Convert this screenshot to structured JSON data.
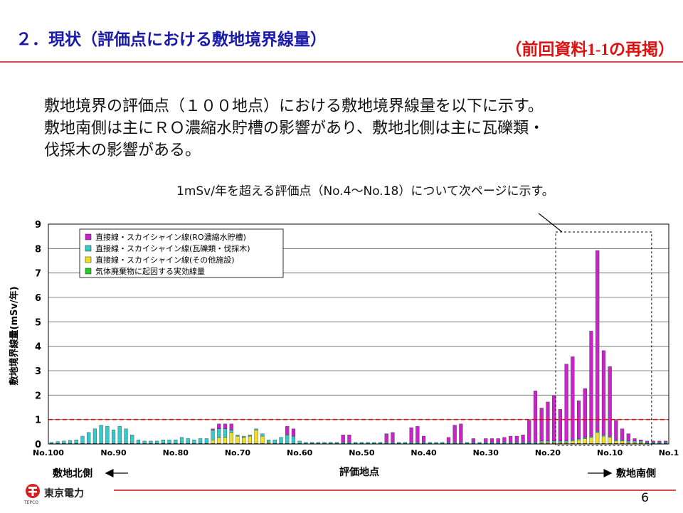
{
  "header": {
    "title": "２．現状（評価点における敷地境界線量）",
    "repost": "（前回資料1-1の再掲）"
  },
  "body": {
    "lines": [
      "敷地境界の評価点（１００地点）における敷地境界線量を以下に示す。",
      "敷地南側は主にＲＯ濃縮水貯槽の影響があり、敷地北側は主に瓦礫類・",
      "伐採木の影響がある。"
    ],
    "note": "1mSv/年を超える評価点（No.4～No.18）について次ページに示す。"
  },
  "footer": {
    "company": "東京電力",
    "company_sub": "TEPCO",
    "page": "6"
  },
  "chart_data": {
    "type": "bar",
    "stacked": true,
    "ylabel": "敷地境界線量(mSv/年)",
    "xlabel": "評価地点",
    "ylim": [
      0,
      9
    ],
    "yticks": [
      0,
      1,
      2,
      3,
      4,
      5,
      6,
      7,
      8,
      9
    ],
    "x_tick_labels": [
      "No.100",
      "No.90",
      "No.80",
      "No.70",
      "No.60",
      "No.50",
      "No.40",
      "No.30",
      "No.20",
      "No.10",
      "No.1"
    ],
    "x_order": "No.100 → No.1 (left to right)",
    "north_label": "敷地北側",
    "south_label": "敷地南側",
    "reference_line": {
      "value": 1,
      "color": "#ff0000",
      "style": "dashed"
    },
    "highlight_range": [
      "No.18",
      "No.4"
    ],
    "grid": true,
    "legend_position": "top-left",
    "series": [
      {
        "name": "直接線・スカイシャイン線(RO濃縮水貯槽)",
        "color": "#cc22cc",
        "values": [
          0,
          0,
          0,
          0,
          0,
          0,
          0,
          0,
          0,
          0,
          0,
          0,
          0,
          0,
          0,
          0,
          0,
          0,
          0,
          0,
          0,
          0,
          0,
          0,
          0,
          0,
          0.05,
          0.2,
          0.2,
          0.25,
          0,
          0,
          0,
          0,
          0,
          0,
          0,
          0,
          0.35,
          0.3,
          0,
          0,
          0,
          0,
          0,
          0,
          0,
          0.3,
          0.3,
          0,
          0,
          0,
          0,
          0,
          0.35,
          0.4,
          0,
          0,
          0.6,
          0.65,
          0.25,
          0,
          0,
          0,
          0.2,
          0.7,
          0.75,
          0,
          0.15,
          0,
          0.15,
          0.15,
          0.15,
          0.2,
          0.25,
          0.25,
          0.3,
          0.9,
          2.1,
          1.35,
          1.6,
          1.85,
          1.3,
          3.15,
          3.4,
          1.55,
          2.0,
          4.3,
          7.4,
          3.45,
          2.85,
          0.8,
          0.45,
          0.3,
          0.1,
          0.05,
          0.05,
          0.05,
          0.05,
          0.05
        ]
      },
      {
        "name": "直接線・スカイシャイン線(瓦礫類・伐採木)",
        "color": "#33cccc",
        "values": [
          0.05,
          0.08,
          0.1,
          0.12,
          0.15,
          0.3,
          0.45,
          0.6,
          0.75,
          0.7,
          0.55,
          0.7,
          0.6,
          0.35,
          0.15,
          0.1,
          0.1,
          0.1,
          0.15,
          0.15,
          0.15,
          0.25,
          0.2,
          0.15,
          0.2,
          0.2,
          0.4,
          0.35,
          0.35,
          0.1,
          0.05,
          0.05,
          0.05,
          0.05,
          0.1,
          0.1,
          0.15,
          0.25,
          0.35,
          0.3,
          0.1,
          0.05,
          0.05,
          0.05,
          0.05,
          0.05,
          0.05,
          0.05,
          0.05,
          0.05,
          0.05,
          0.05,
          0.05,
          0.05,
          0.05,
          0.05,
          0.05,
          0.05,
          0.05,
          0.05,
          0.05,
          0.05,
          0.05,
          0.05,
          0.05,
          0.05,
          0.05,
          0.05,
          0.05,
          0.05,
          0.05,
          0.05,
          0.05,
          0.05,
          0.05,
          0.05,
          0.05,
          0.05,
          0.05,
          0.05,
          0.05,
          0.05,
          0.05,
          0.05,
          0.05,
          0.05,
          0.05,
          0.05,
          0.05,
          0.05,
          0.05,
          0.05,
          0.05,
          0.05,
          0.05,
          0.05,
          0.05,
          0.05,
          0.05,
          0.05
        ]
      },
      {
        "name": "直接線・スカイシャイン線(その他施設)",
        "color": "#f0e020",
        "values": [
          0,
          0,
          0,
          0,
          0,
          0,
          0,
          0,
          0,
          0,
          0,
          0,
          0,
          0,
          0,
          0,
          0,
          0,
          0,
          0,
          0,
          0,
          0,
          0,
          0,
          0,
          0.15,
          0.25,
          0.25,
          0.45,
          0.3,
          0.25,
          0.3,
          0.55,
          0.3,
          0.05,
          0,
          0,
          0,
          0,
          0,
          0,
          0,
          0,
          0,
          0,
          0,
          0,
          0,
          0,
          0,
          0,
          0,
          0,
          0,
          0,
          0,
          0,
          0,
          0,
          0,
          0,
          0,
          0,
          0,
          0,
          0,
          0,
          0,
          0,
          0,
          0,
          0,
          0,
          0,
          0,
          0,
          0,
          0,
          0.05,
          0.05,
          0.05,
          0.05,
          0.05,
          0.1,
          0.15,
          0.2,
          0.25,
          0.45,
          0.3,
          0.25,
          0.1,
          0.1,
          0.05,
          0.05,
          0.05,
          0,
          0,
          0,
          0
        ]
      },
      {
        "name": "気体廃棄物に起因する実効線量",
        "color": "#22cc22",
        "values": [
          0.02,
          0.02,
          0.02,
          0.02,
          0.02,
          0.02,
          0.02,
          0.02,
          0.02,
          0.02,
          0.02,
          0.02,
          0.02,
          0.02,
          0.02,
          0.02,
          0.02,
          0.02,
          0.02,
          0.02,
          0.02,
          0.02,
          0.02,
          0.02,
          0.02,
          0.02,
          0.02,
          0.02,
          0.02,
          0.02,
          0.02,
          0.02,
          0.02,
          0.02,
          0.02,
          0.02,
          0.02,
          0.02,
          0.02,
          0.02,
          0.02,
          0.02,
          0.02,
          0.02,
          0.02,
          0.02,
          0.02,
          0.02,
          0.02,
          0.02,
          0.02,
          0.02,
          0.02,
          0.02,
          0.02,
          0.02,
          0.02,
          0.02,
          0.02,
          0.02,
          0.02,
          0.02,
          0.02,
          0.02,
          0.02,
          0.02,
          0.02,
          0.02,
          0.02,
          0.02,
          0.02,
          0.02,
          0.02,
          0.02,
          0.02,
          0.02,
          0.02,
          0.02,
          0.02,
          0.02,
          0.02,
          0.02,
          0.02,
          0.02,
          0.02,
          0.02,
          0.02,
          0.02,
          0.02,
          0.02,
          0.02,
          0.02,
          0.02,
          0.02,
          0.02,
          0.02,
          0.02,
          0.02,
          0.02,
          0.02
        ]
      }
    ]
  }
}
